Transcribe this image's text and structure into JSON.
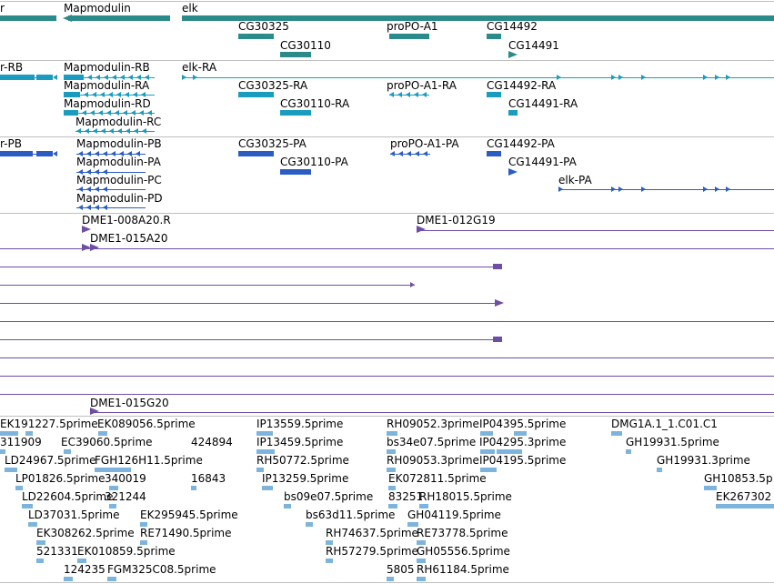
{
  "colors": {
    "gene": "#2b8a8a",
    "transcript": "#1a9cbf",
    "protein": "#2a5cc4",
    "bac": "#6f4ea6",
    "est": "#7cb4dd",
    "divider": "#bfbfbf"
  },
  "tracks": {
    "gene_labels": [
      "r",
      "Mapmodulin",
      "elk",
      "CG30325",
      "CG30110",
      "proPO-A1",
      "CG14492",
      "CG14491"
    ],
    "transcript_labels": [
      "r-RB",
      "Mapmodulin-RB",
      "elk-RA",
      "Mapmodulin-RA",
      "CG30325-RA",
      "proPO-A1-RA",
      "CG14492-RA",
      "Mapmodulin-RD",
      "CG30110-RA",
      "CG14491-RA",
      "Mapmodulin-RC"
    ],
    "protein_labels": [
      "r-PB",
      "Mapmodulin-PB",
      "CG30325-PA",
      "proPO-A1-PA",
      "CG14492-PA",
      "Mapmodulin-PA",
      "CG30110-PA",
      "CG14491-PA",
      "Mapmodulin-PC",
      "elk-PA",
      "Mapmodulin-PD"
    ],
    "bac_labels": [
      "DME1-008A20.R",
      "DME1-012G19",
      "DME1-015A20",
      "DME1-015G20"
    ],
    "est_labels": [
      "EK191227.5prime",
      "EK089056.5prime",
      "IP13559.5prime",
      "RH09052.3prime",
      "IP04395.5prime",
      "DMG1A.1_1.C01.C1",
      "311909",
      "EC39060.5prime",
      "424894",
      "IP13459.5prime",
      "bs34e07.5prime",
      "IP04295.3prime",
      "GH19931.5prime",
      "LD24967.5prime",
      "FGH126H11.5prime",
      "RH50772.5prime",
      "RH09053.3prime",
      "IP04195.5prime",
      "GH19931.3prime",
      "LP01826.5prime",
      "340019",
      "16843",
      "IP13259.5prime",
      "EK072811.5prime",
      "GH10853.5p",
      "LD22604.5prime",
      "321244",
      "bs09e07.5prime",
      "83251",
      "RH18015.5prime",
      "EK267302",
      "LD37031.5prime",
      "EK295945.5prime",
      "bs63d11.5prime",
      "GH04119.5prime",
      "EK308262.5prime",
      "RE71490.5prime",
      "RH74637.5prime",
      "RE73778.5prime",
      "521331",
      "EK010859.5prime",
      "RH57279.5prime",
      "GH05556.5prime",
      "124235",
      "FGM325C08.5prime",
      "5805",
      "RH61184.5prime"
    ]
  }
}
